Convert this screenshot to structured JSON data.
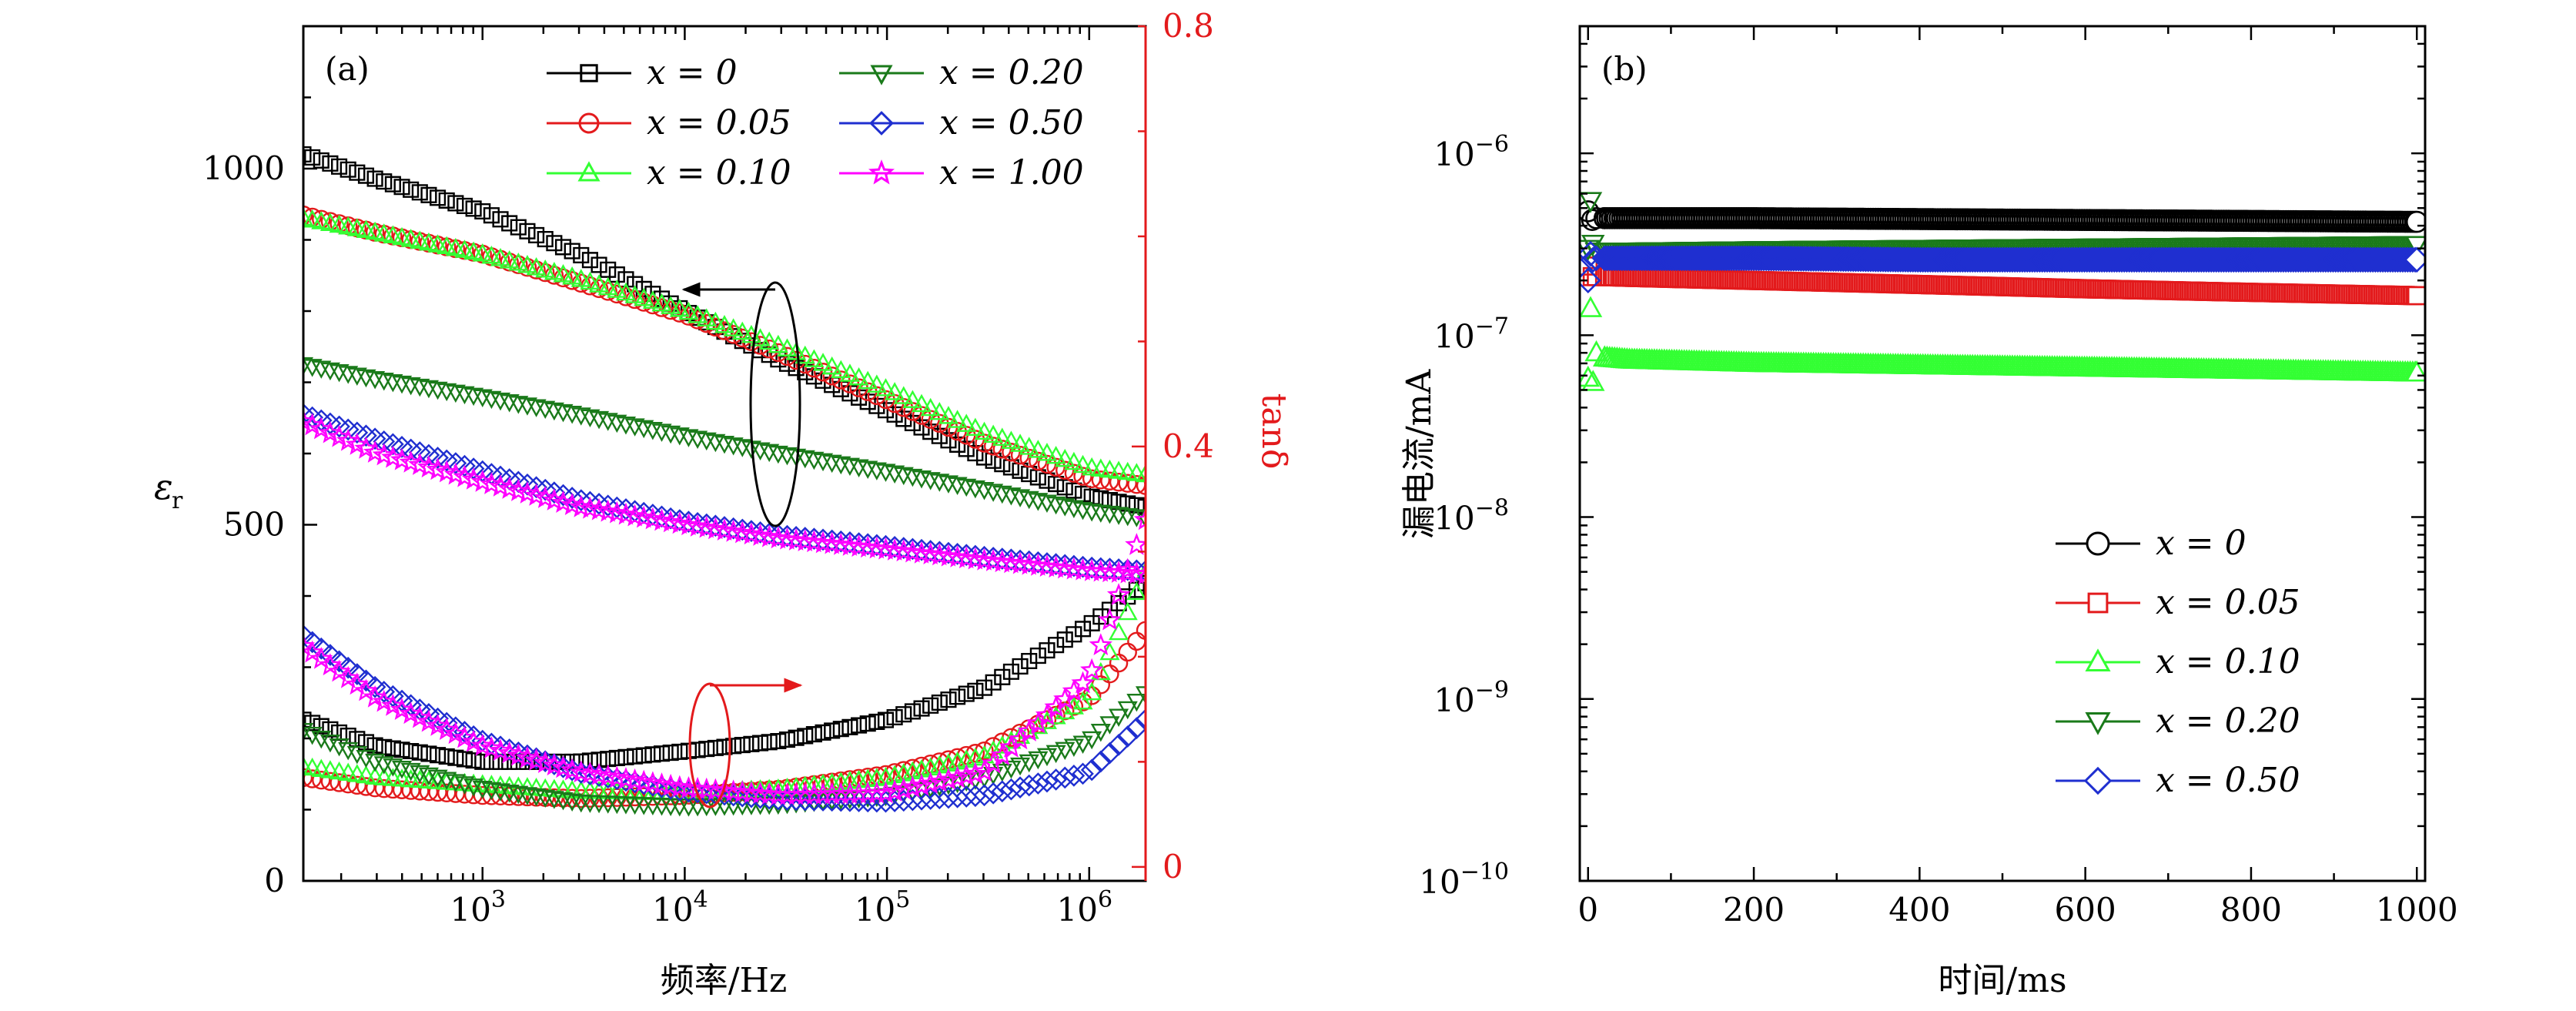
{
  "chart_data": [
    {
      "type": "line",
      "panel_label": "(a)",
      "xlabel": "频率/Hz",
      "ylabel": "εr",
      "ylabel_main": "ε",
      "ylabel_sub": "r",
      "y2label": "tanδ",
      "x_scale": "log",
      "xlim": [
        130,
        1900000
      ],
      "ylim": [
        0,
        1200
      ],
      "y2lim": [
        -0.0133,
        0.8
      ],
      "x_ticks": [
        {
          "value": 1000,
          "base": "10",
          "exp": "3"
        },
        {
          "value": 10000,
          "base": "10",
          "exp": "4"
        },
        {
          "value": 100000,
          "base": "10",
          "exp": "5"
        },
        {
          "value": 1000000,
          "base": "10",
          "exp": "6"
        }
      ],
      "y_ticks": [
        {
          "value": 0,
          "label": "0"
        },
        {
          "value": 500,
          "label": "500"
        },
        {
          "value": 1000,
          "label": "1000"
        }
      ],
      "y2_ticks": [
        {
          "value": 0,
          "label": "0"
        },
        {
          "value": 0.4,
          "label": "0.4"
        },
        {
          "value": 0.8,
          "label": "0.8"
        }
      ],
      "legend_position": "top",
      "series": [
        {
          "name": "x = 0",
          "color": "#000000",
          "marker": "square",
          "eps_x": [
            130,
            300,
            1000,
            3000,
            10000,
            30000,
            100000,
            300000,
            1000000,
            1900000
          ],
          "eps": [
            1020,
            985,
            940,
            880,
            800,
            730,
            660,
            595,
            540,
            525
          ],
          "tan_x": [
            130,
            300,
            1000,
            3000,
            10000,
            30000,
            100000,
            300000,
            1000000,
            1900000
          ],
          "tan": [
            0.14,
            0.115,
            0.1,
            0.1,
            0.11,
            0.12,
            0.14,
            0.17,
            0.23,
            0.27
          ]
        },
        {
          "name": "x = 0.05",
          "color": "#e31a1c",
          "marker": "circle",
          "eps_x": [
            130,
            300,
            1000,
            3000,
            10000,
            30000,
            100000,
            300000,
            1000000,
            1900000
          ],
          "eps": [
            935,
            910,
            880,
            840,
            795,
            740,
            675,
            615,
            565,
            555
          ],
          "tan_x": [
            130,
            300,
            1000,
            3000,
            10000,
            30000,
            100000,
            300000,
            1000000,
            1900000
          ],
          "tan": [
            0.085,
            0.075,
            0.068,
            0.065,
            0.068,
            0.074,
            0.088,
            0.11,
            0.16,
            0.225
          ]
        },
        {
          "name": "x = 0.10",
          "color": "#33ff33",
          "marker": "triangle-up",
          "eps_x": [
            130,
            300,
            1000,
            3000,
            10000,
            30000,
            100000,
            300000,
            1000000,
            1900000
          ],
          "eps": [
            930,
            910,
            880,
            845,
            800,
            750,
            690,
            630,
            580,
            570
          ],
          "tan_x": [
            130,
            300,
            1000,
            3000,
            10000,
            30000,
            100000,
            300000,
            1000000,
            1900000
          ],
          "tan": [
            0.095,
            0.085,
            0.078,
            0.072,
            0.07,
            0.074,
            0.085,
            0.105,
            0.16,
            0.28
          ]
        },
        {
          "name": "x = 0.20",
          "color": "#1a7a1a",
          "marker": "triangle-down",
          "eps_x": [
            130,
            300,
            1000,
            3000,
            10000,
            30000,
            100000,
            300000,
            1000000,
            1900000
          ],
          "eps": [
            725,
            705,
            680,
            655,
            625,
            600,
            575,
            550,
            520,
            510
          ],
          "tan_x": [
            130,
            300,
            1000,
            3000,
            10000,
            30000,
            100000,
            300000,
            1000000,
            1900000
          ],
          "tan": [
            0.13,
            0.1,
            0.075,
            0.062,
            0.058,
            0.06,
            0.068,
            0.085,
            0.12,
            0.165
          ]
        },
        {
          "name": "x = 0.50",
          "color": "#1f2fd0",
          "marker": "diamond",
          "eps_x": [
            130,
            300,
            1000,
            3000,
            10000,
            30000,
            100000,
            300000,
            1000000,
            1900000
          ],
          "eps": [
            655,
            620,
            575,
            535,
            505,
            485,
            470,
            455,
            440,
            435
          ],
          "tan_x": [
            130,
            300,
            1000,
            3000,
            10000,
            30000,
            100000,
            300000,
            1000000,
            1900000
          ],
          "tan": [
            0.22,
            0.17,
            0.12,
            0.09,
            0.072,
            0.064,
            0.062,
            0.068,
            0.09,
            0.14
          ]
        },
        {
          "name": "x = 1.00",
          "color": "#ff00ff",
          "marker": "star",
          "eps_x": [
            130,
            300,
            1000,
            3000,
            10000,
            30000,
            100000,
            300000,
            1000000,
            1900000
          ],
          "eps": [
            645,
            600,
            560,
            525,
            500,
            480,
            465,
            450,
            435,
            430
          ],
          "tan_x": [
            130,
            300,
            1000,
            3000,
            10000,
            30000,
            100000,
            300000,
            1000000,
            1900000
          ],
          "tan": [
            0.21,
            0.16,
            0.115,
            0.09,
            0.075,
            0.068,
            0.07,
            0.09,
            0.18,
            0.33
          ]
        }
      ],
      "annotations": [
        {
          "type": "ellipse-arrow",
          "points_to": "left-axis",
          "color": "#000000"
        },
        {
          "type": "ellipse-arrow",
          "points_to": "right-axis",
          "color": "#e31a1c"
        }
      ]
    },
    {
      "type": "scatter",
      "panel_label": "(b)",
      "xlabel": "时间/ms",
      "ylabel": "漏电流/mA",
      "y_scale": "log",
      "xlim": [
        -10,
        1010
      ],
      "ylim": [
        1e-10,
        5e-06
      ],
      "x_ticks": [
        {
          "value": 0,
          "label": "0"
        },
        {
          "value": 200,
          "label": "200"
        },
        {
          "value": 400,
          "label": "400"
        },
        {
          "value": 600,
          "label": "600"
        },
        {
          "value": 800,
          "label": "800"
        },
        {
          "value": 1000,
          "label": "1000"
        }
      ],
      "y_ticks": [
        {
          "value": 1e-10,
          "base": "10",
          "exp": "−10"
        },
        {
          "value": 1e-09,
          "base": "10",
          "exp": "−9"
        },
        {
          "value": 1e-08,
          "base": "10",
          "exp": "−8"
        },
        {
          "value": 1e-07,
          "base": "10",
          "exp": "−7"
        },
        {
          "value": 1e-06,
          "base": "10",
          "exp": "−6"
        }
      ],
      "legend_position": "lower-right",
      "series": [
        {
          "name": "x = 0",
          "color": "#000000",
          "marker": "circle",
          "x": [
            0,
            5,
            10,
            20,
            50,
            200,
            400,
            600,
            800,
            1000
          ],
          "y": [
            4.8e-07,
            4.3e-07,
            4.4e-07,
            4.4e-07,
            4.4e-07,
            4.4e-07,
            4.35e-07,
            4.3e-07,
            4.25e-07,
            4.2e-07
          ]
        },
        {
          "name": "x = 0.05",
          "color": "#e31a1c",
          "marker": "square",
          "x": [
            0,
            5,
            10,
            20,
            50,
            200,
            400,
            600,
            800,
            1000
          ],
          "y": [
            2.4e-07,
            2.1e-07,
            2.1e-07,
            2.1e-07,
            2.08e-07,
            2e-07,
            1.9e-07,
            1.8e-07,
            1.72e-07,
            1.65e-07
          ]
        },
        {
          "name": "x = 0.10",
          "color": "#33ff33",
          "marker": "triangle-up",
          "x": [
            0,
            3,
            6,
            10,
            20,
            50,
            200,
            400,
            600,
            800,
            1000
          ],
          "y": [
            5.8e-08,
            1.4e-07,
            5.5e-08,
            8e-08,
            7.5e-08,
            7.3e-08,
            7e-08,
            6.8e-08,
            6.6e-08,
            6.4e-08,
            6.2e-08
          ]
        },
        {
          "name": "x = 0.20",
          "color": "#1a7a1a",
          "marker": "triangle-down",
          "x": [
            0,
            3,
            6,
            10,
            20,
            50,
            200,
            400,
            600,
            800,
            1000
          ],
          "y": [
            3e-07,
            5.5e-07,
            3.2e-07,
            2.9e-07,
            2.9e-07,
            2.9e-07,
            2.95e-07,
            3e-07,
            3.05e-07,
            3.1e-07,
            3.15e-07
          ]
        },
        {
          "name": "x = 0.50",
          "color": "#1f2fd0",
          "marker": "diamond",
          "x": [
            0,
            3,
            6,
            10,
            20,
            50,
            200,
            400,
            600,
            800,
            1000
          ],
          "y": [
            2e-07,
            2.8e-07,
            2.6e-07,
            2.65e-07,
            2.65e-07,
            2.65e-07,
            2.65e-07,
            2.6e-07,
            2.6e-07,
            2.6e-07,
            2.6e-07
          ]
        }
      ]
    }
  ]
}
